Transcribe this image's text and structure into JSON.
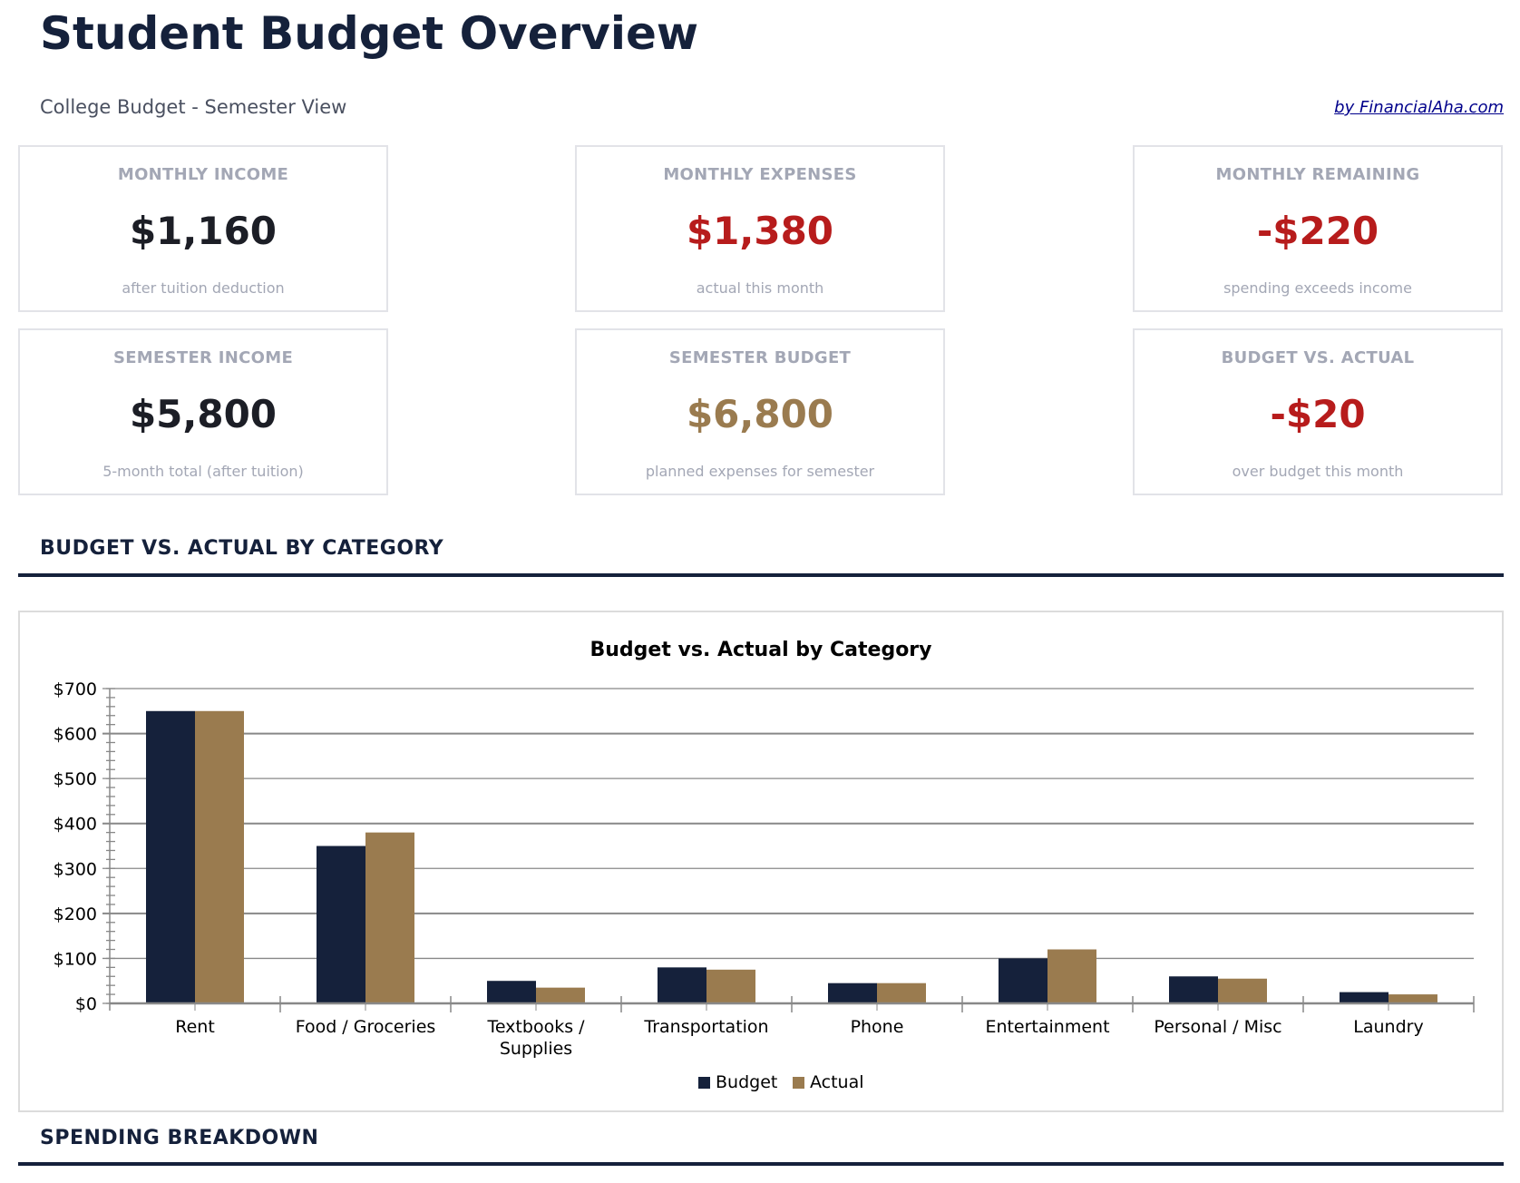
{
  "header": {
    "title": "Student Budget Overview",
    "subtitle": "College Budget - Semester View",
    "credit": "by FinancialAha.com"
  },
  "cards": [
    {
      "label": "MONTHLY INCOME",
      "value": "$1,160",
      "note": "after tuition deduction",
      "color": "#1c1e26"
    },
    {
      "label": "MONTHLY EXPENSES",
      "value": "$1,380",
      "note": "actual this month",
      "color": "#b71c1c"
    },
    {
      "label": "MONTHLY REMAINING",
      "value": "-$220",
      "note": "spending exceeds income",
      "color": "#b71c1c"
    },
    {
      "label": "SEMESTER INCOME",
      "value": "$5,800",
      "note": "5-month total (after tuition)",
      "color": "#1c1e26"
    },
    {
      "label": "SEMESTER BUDGET",
      "value": "$6,800",
      "note": "planned expenses for semester",
      "color": "#9a7b4f"
    },
    {
      "label": "BUDGET VS. ACTUAL",
      "value": "-$20",
      "note": "over budget this month",
      "color": "#b71c1c"
    }
  ],
  "sections": {
    "budget_vs_actual": "BUDGET VS. ACTUAL BY CATEGORY",
    "spending_breakdown": "SPENDING BREAKDOWN"
  },
  "chart_data": {
    "type": "bar",
    "title": "Budget vs. Actual by Category",
    "categories": [
      "Rent",
      "Food / Groceries",
      "Textbooks / Supplies",
      "Transportation",
      "Phone",
      "Entertainment",
      "Personal / Misc",
      "Laundry"
    ],
    "category_lines": [
      [
        "Rent"
      ],
      [
        "Food / Groceries"
      ],
      [
        "Textbooks /",
        "Supplies"
      ],
      [
        "Transportation"
      ],
      [
        "Phone"
      ],
      [
        "Entertainment"
      ],
      [
        "Personal / Misc"
      ],
      [
        "Laundry"
      ]
    ],
    "series": [
      {
        "name": "Budget",
        "color": "#15213b",
        "values": [
          650,
          350,
          50,
          80,
          45,
          100,
          60,
          25
        ]
      },
      {
        "name": "Actual",
        "color": "#9a7b4f",
        "values": [
          650,
          380,
          35,
          75,
          45,
          120,
          55,
          20
        ]
      }
    ],
    "ylim": [
      0,
      700
    ],
    "yticks": [
      0,
      100,
      200,
      300,
      400,
      500,
      600,
      700
    ],
    "ytick_labels": [
      "$0",
      "$100",
      "$200",
      "$300",
      "$400",
      "$500",
      "$600",
      "$700"
    ],
    "grid": true,
    "legend": "bottom"
  }
}
